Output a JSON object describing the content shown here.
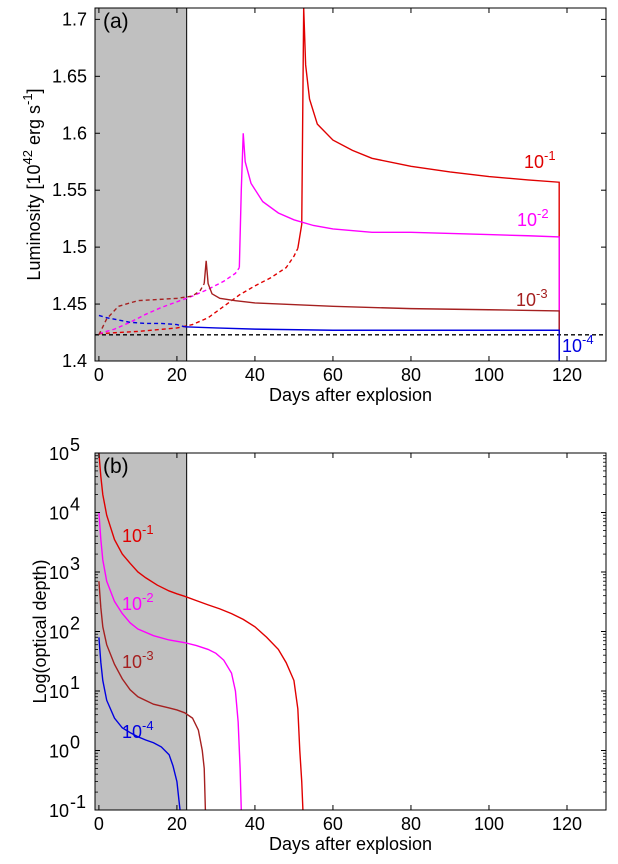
{
  "chart_data": [
    {
      "type": "line",
      "panel_label": "(a)",
      "xlabel": "Days after explosion",
      "ylabel": "Luminosity [10^42 erg s^-1]",
      "ylabel_parts": {
        "pre": "Luminosity [10",
        "exp1": "42",
        "mid": " erg s",
        "exp2": "-1",
        "post": "]"
      },
      "xlim": [
        -1,
        130
      ],
      "ylim": [
        1.4,
        1.71
      ],
      "xticks": [
        0,
        20,
        40,
        60,
        80,
        100,
        120
      ],
      "yticks": [
        1.4,
        1.45,
        1.5,
        1.55,
        1.6,
        1.65,
        1.7
      ],
      "ytick_labels": [
        "1.4",
        "1.45",
        "1.5",
        "1.55",
        "1.6",
        "1.65",
        "1.7"
      ],
      "shaded_region_x": [
        -1,
        22.5
      ],
      "shaded_color": "#c0c0c0",
      "grid": false,
      "reference_line": {
        "y": 1.423,
        "style": "dashed",
        "color": "#000000"
      },
      "series": [
        {
          "name": "10^-1",
          "base": "10",
          "exp": "-1",
          "color": "#e00000",
          "dashed": [
            [
              0,
              1.424
            ],
            [
              10,
              1.426
            ],
            [
              20,
              1.429
            ],
            [
              24,
              1.432
            ],
            [
              28,
              1.438
            ],
            [
              32,
              1.448
            ],
            [
              36,
              1.458
            ],
            [
              40,
              1.466
            ],
            [
              44,
              1.473
            ],
            [
              48,
              1.482
            ],
            [
              50,
              1.492
            ],
            [
              51,
              1.499
            ]
          ],
          "solid": [
            [
              51,
              1.499
            ],
            [
              52,
              1.52
            ],
            [
              52.5,
              1.71
            ],
            [
              53,
              1.66
            ],
            [
              54,
              1.63
            ],
            [
              56,
              1.608
            ],
            [
              60,
              1.594
            ],
            [
              65,
              1.585
            ],
            [
              70,
              1.578
            ],
            [
              80,
              1.571
            ],
            [
              90,
              1.566
            ],
            [
              100,
              1.562
            ],
            [
              110,
              1.559
            ],
            [
              118,
              1.557
            ],
            [
              118,
              1.402
            ]
          ]
        },
        {
          "name": "10^-2",
          "base": "10",
          "exp": "-2",
          "color": "#ff00ff",
          "dashed": [
            [
              0,
              1.424
            ],
            [
              4,
              1.428
            ],
            [
              8,
              1.434
            ],
            [
              12,
              1.441
            ],
            [
              16,
              1.447
            ],
            [
              20,
              1.452
            ],
            [
              24,
              1.457
            ],
            [
              28,
              1.463
            ],
            [
              32,
              1.47
            ],
            [
              35,
              1.477
            ],
            [
              36,
              1.482
            ]
          ],
          "solid": [
            [
              36,
              1.482
            ],
            [
              36.5,
              1.55
            ],
            [
              37,
              1.6
            ],
            [
              37.5,
              1.575
            ],
            [
              39,
              1.556
            ],
            [
              42,
              1.54
            ],
            [
              46,
              1.53
            ],
            [
              50,
              1.524
            ],
            [
              55,
              1.519
            ],
            [
              60,
              1.516
            ],
            [
              70,
              1.513
            ],
            [
              80,
              1.513
            ],
            [
              90,
              1.512
            ],
            [
              100,
              1.511
            ],
            [
              110,
              1.51
            ],
            [
              118,
              1.509
            ],
            [
              118,
              1.402
            ]
          ]
        },
        {
          "name": "10^-3",
          "base": "10",
          "exp": "-3",
          "color": "#a52020",
          "dashed": [
            [
              0,
              1.423
            ],
            [
              2,
              1.437
            ],
            [
              5,
              1.448
            ],
            [
              10,
              1.453
            ],
            [
              15,
              1.454
            ],
            [
              20,
              1.455
            ],
            [
              24,
              1.457
            ],
            [
              26,
              1.462
            ],
            [
              27,
              1.468
            ]
          ],
          "solid": [
            [
              27,
              1.468
            ],
            [
              27.5,
              1.488
            ],
            [
              28,
              1.468
            ],
            [
              29,
              1.459
            ],
            [
              31,
              1.455
            ],
            [
              35,
              1.453
            ],
            [
              40,
              1.451
            ],
            [
              60,
              1.448
            ],
            [
              80,
              1.446
            ],
            [
              100,
              1.445
            ],
            [
              118,
              1.444
            ],
            [
              118,
              1.402
            ]
          ]
        },
        {
          "name": "10^-4",
          "base": "10",
          "exp": "-4",
          "color": "#0000e0",
          "dashed": [
            [
              0,
              1.44
            ],
            [
              2,
              1.438
            ],
            [
              5,
              1.436
            ],
            [
              8,
              1.434
            ],
            [
              12,
              1.433
            ],
            [
              16,
              1.433
            ],
            [
              20,
              1.432
            ],
            [
              22,
              1.43
            ]
          ],
          "solid": [
            [
              22,
              1.43
            ],
            [
              30,
              1.429
            ],
            [
              40,
              1.428
            ],
            [
              60,
              1.427
            ],
            [
              80,
              1.427
            ],
            [
              100,
              1.427
            ],
            [
              118,
              1.427
            ],
            [
              118,
              1.4
            ]
          ]
        }
      ]
    },
    {
      "type": "line",
      "panel_label": "(b)",
      "xlabel": "Days after explosion",
      "ylabel": "Log(optical depth)",
      "yscale": "log",
      "xlim": [
        -1,
        130
      ],
      "ylim": [
        0.1,
        100000
      ],
      "xticks": [
        0,
        20,
        40,
        60,
        80,
        100,
        120
      ],
      "yticks": [
        0.1,
        1,
        10,
        100,
        1000,
        10000,
        100000
      ],
      "ytick_exponents": [
        "-1",
        "0",
        "1",
        "2",
        "3",
        "4",
        "5"
      ],
      "shaded_region_x": [
        -1,
        22.5
      ],
      "shaded_color": "#c0c0c0",
      "grid": false,
      "series": [
        {
          "name": "10^-1",
          "base": "10",
          "exp": "-1",
          "color": "#e00000",
          "points": [
            [
              0,
              100000
            ],
            [
              0.5,
              40000
            ],
            [
              1,
              20000
            ],
            [
              2,
              9000
            ],
            [
              4,
              3500
            ],
            [
              6,
              2000
            ],
            [
              8,
              1400
            ],
            [
              10,
              1000
            ],
            [
              12,
              800
            ],
            [
              15,
              600
            ],
            [
              18,
              480
            ],
            [
              20,
              430
            ],
            [
              22,
              390
            ],
            [
              25,
              330
            ],
            [
              28,
              280
            ],
            [
              31,
              240
            ],
            [
              34,
              200
            ],
            [
              37,
              160
            ],
            [
              40,
              120
            ],
            [
              43,
              80
            ],
            [
              46,
              50
            ],
            [
              48,
              30
            ],
            [
              50,
              15
            ],
            [
              51,
              5
            ],
            [
              51.5,
              1
            ],
            [
              52,
              0.3
            ],
            [
              52.3,
              0.1
            ]
          ]
        },
        {
          "name": "10^-2",
          "base": "10",
          "exp": "-2",
          "color": "#ff00ff",
          "points": [
            [
              0,
              10000
            ],
            [
              0.5,
              3500
            ],
            [
              1,
              1600
            ],
            [
              2,
              700
            ],
            [
              4,
              320
            ],
            [
              6,
              200
            ],
            [
              8,
              140
            ],
            [
              10,
              110
            ],
            [
              14,
              85
            ],
            [
              18,
              72
            ],
            [
              22,
              65
            ],
            [
              25,
              58
            ],
            [
              28,
              50
            ],
            [
              30,
              43
            ],
            [
              32,
              33
            ],
            [
              34,
              20
            ],
            [
              35,
              10
            ],
            [
              35.7,
              3
            ],
            [
              36.2,
              0.5
            ],
            [
              36.5,
              0.1
            ]
          ]
        },
        {
          "name": "10^-3",
          "base": "10",
          "exp": "-3",
          "color": "#a52020",
          "points": [
            [
              0,
              700
            ],
            [
              0.5,
              250
            ],
            [
              1,
              120
            ],
            [
              2,
              60
            ],
            [
              4,
              28
            ],
            [
              6,
              16
            ],
            [
              8,
              10.5
            ],
            [
              10,
              8
            ],
            [
              14,
              6
            ],
            [
              18,
              5.2
            ],
            [
              20,
              4.8
            ],
            [
              22,
              4.3
            ],
            [
              24,
              3.5
            ],
            [
              25.5,
              2.2
            ],
            [
              26.5,
              1
            ],
            [
              27,
              0.5
            ],
            [
              27.3,
              0.1
            ]
          ]
        },
        {
          "name": "10^-4",
          "base": "10",
          "exp": "-4",
          "color": "#0000e0",
          "points": [
            [
              0,
              80
            ],
            [
              0.5,
              30
            ],
            [
              1,
              15
            ],
            [
              2,
              7
            ],
            [
              4,
              3.5
            ],
            [
              6,
              2.4
            ],
            [
              8,
              2
            ],
            [
              10,
              1.7
            ],
            [
              12,
              1.5
            ],
            [
              14,
              1.35
            ],
            [
              16,
              1.15
            ],
            [
              18,
              0.85
            ],
            [
              19,
              0.55
            ],
            [
              20,
              0.3
            ],
            [
              20.5,
              0.15
            ],
            [
              20.8,
              0.1
            ]
          ]
        }
      ]
    }
  ]
}
